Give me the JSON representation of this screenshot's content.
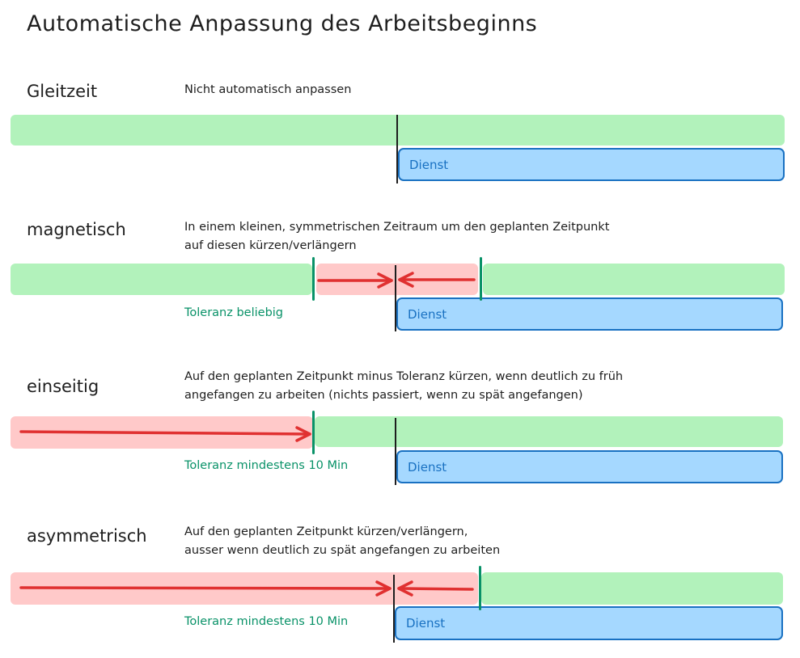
{
  "title": "Automatische Anpassung des Arbeitsbeginns",
  "colors": {
    "green": "#b2f2bb",
    "red": "#ffc9c9",
    "blue": "#a5d8ff",
    "blue_stroke": "#1971c2",
    "tolerance_marker": "#099268",
    "arrow": "#e03131"
  },
  "sections": [
    {
      "label": "Gleitzeit",
      "description": [
        "Nicht automatisch anpassen"
      ],
      "shift": "Dienst"
    },
    {
      "label": "magnetisch",
      "description": [
        "In einem kleinen, symmetrischen Zeitraum um den geplanten Zeitpunkt",
        "auf diesen kürzen/verlängern"
      ],
      "shift": "Dienst",
      "tolerance": "Toleranz beliebig"
    },
    {
      "label": "einseitig",
      "description": [
        "Auf den geplanten Zeitpunkt minus Toleranz kürzen, wenn deutlich zu früh",
        "angefangen zu arbeiten (nichts passiert, wenn zu spät angefangen)"
      ],
      "shift": "Dienst",
      "tolerance": "Toleranz mindestens 10 Min"
    },
    {
      "label": "asymmetrisch",
      "description": [
        "Auf den geplanten Zeitpunkt kürzen/verlängern,",
        "ausser wenn deutlich zu spät angefangen zu arbeiten"
      ],
      "shift": "Dienst",
      "tolerance": "Toleranz mindestens 10 Min"
    }
  ]
}
